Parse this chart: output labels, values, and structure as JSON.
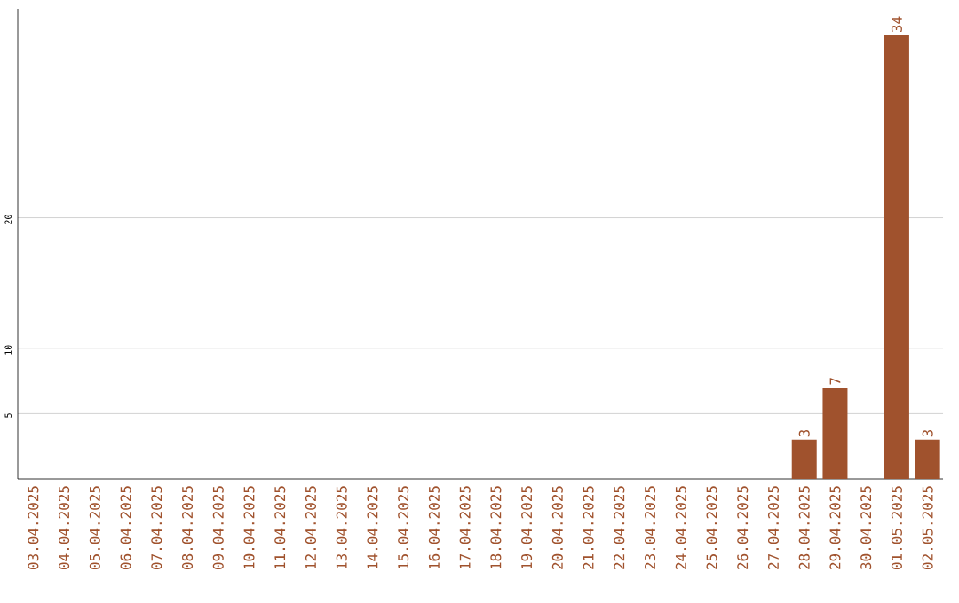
{
  "chart_data": {
    "type": "bar",
    "categories": [
      "03.04.2025",
      "04.04.2025",
      "05.04.2025",
      "06.04.2025",
      "07.04.2025",
      "08.04.2025",
      "09.04.2025",
      "10.04.2025",
      "11.04.2025",
      "12.04.2025",
      "13.04.2025",
      "14.04.2025",
      "15.04.2025",
      "16.04.2025",
      "17.04.2025",
      "18.04.2025",
      "19.04.2025",
      "20.04.2025",
      "21.04.2025",
      "22.04.2025",
      "23.04.2025",
      "24.04.2025",
      "25.04.2025",
      "26.04.2025",
      "27.04.2025",
      "28.04.2025",
      "29.04.2025",
      "30.04.2025",
      "01.05.2025",
      "02.05.2025"
    ],
    "values": [
      0,
      0,
      0,
      0,
      0,
      0,
      0,
      0,
      0,
      0,
      0,
      0,
      0,
      0,
      0,
      0,
      0,
      0,
      0,
      0,
      0,
      0,
      0,
      0,
      0,
      3,
      7,
      0,
      34,
      3
    ],
    "value_labels": [
      null,
      null,
      null,
      null,
      null,
      null,
      null,
      null,
      null,
      null,
      null,
      null,
      null,
      null,
      null,
      null,
      null,
      null,
      null,
      null,
      null,
      null,
      null,
      null,
      null,
      "3",
      "7",
      null,
      "34",
      "3"
    ],
    "color": "#a0522d",
    "ylim": [
      0,
      36
    ],
    "yticks": [
      5,
      10,
      20
    ],
    "grid": "y"
  }
}
